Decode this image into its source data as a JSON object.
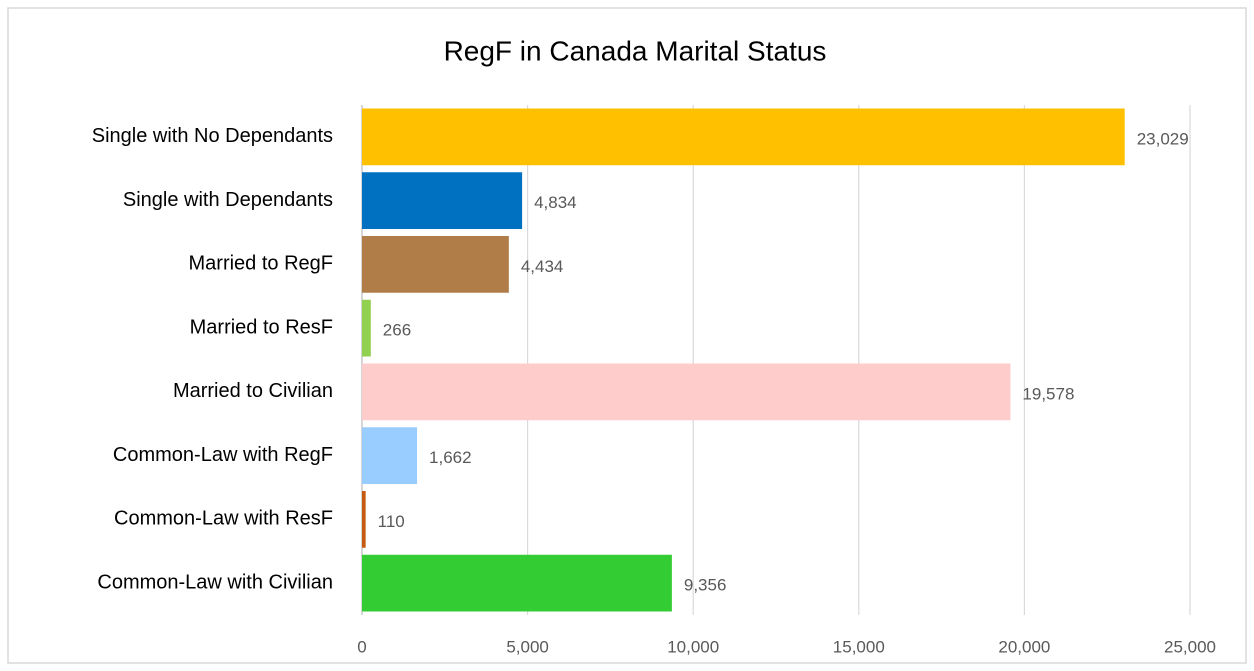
{
  "chart_data": {
    "type": "hbar",
    "title": "RegF in Canada Marital Status",
    "categories": [
      "Single with No Dependants",
      "Single with Dependants",
      "Married to RegF",
      "Married to ResF",
      "Married to Civilian",
      "Common-Law with RegF",
      "Common-Law with ResF",
      "Common-Law with Civilian"
    ],
    "values": [
      23029,
      4834,
      4434,
      266,
      19578,
      1662,
      110,
      9356
    ],
    "value_labels": [
      "23,029",
      "4,834",
      "4,434",
      "266",
      "19,578",
      "1,662",
      "110",
      "9,356"
    ],
    "colors": [
      "#FFC000",
      "#0070C0",
      "#B07D48",
      "#92D050",
      "#FFCCCC",
      "#99CCFF",
      "#C55A11",
      "#33CC33"
    ],
    "xlim": [
      0,
      25000
    ],
    "xticks": [
      0,
      {
        "value": 5000,
        "label": "5,000"
      },
      {
        "value": 10000,
        "label": "10,000"
      },
      {
        "value": 15000,
        "label": "15,000"
      },
      {
        "value": 20000,
        "label": "20,000"
      },
      {
        "value": 25000,
        "label": "25,000"
      }
    ],
    "grid": true
  }
}
